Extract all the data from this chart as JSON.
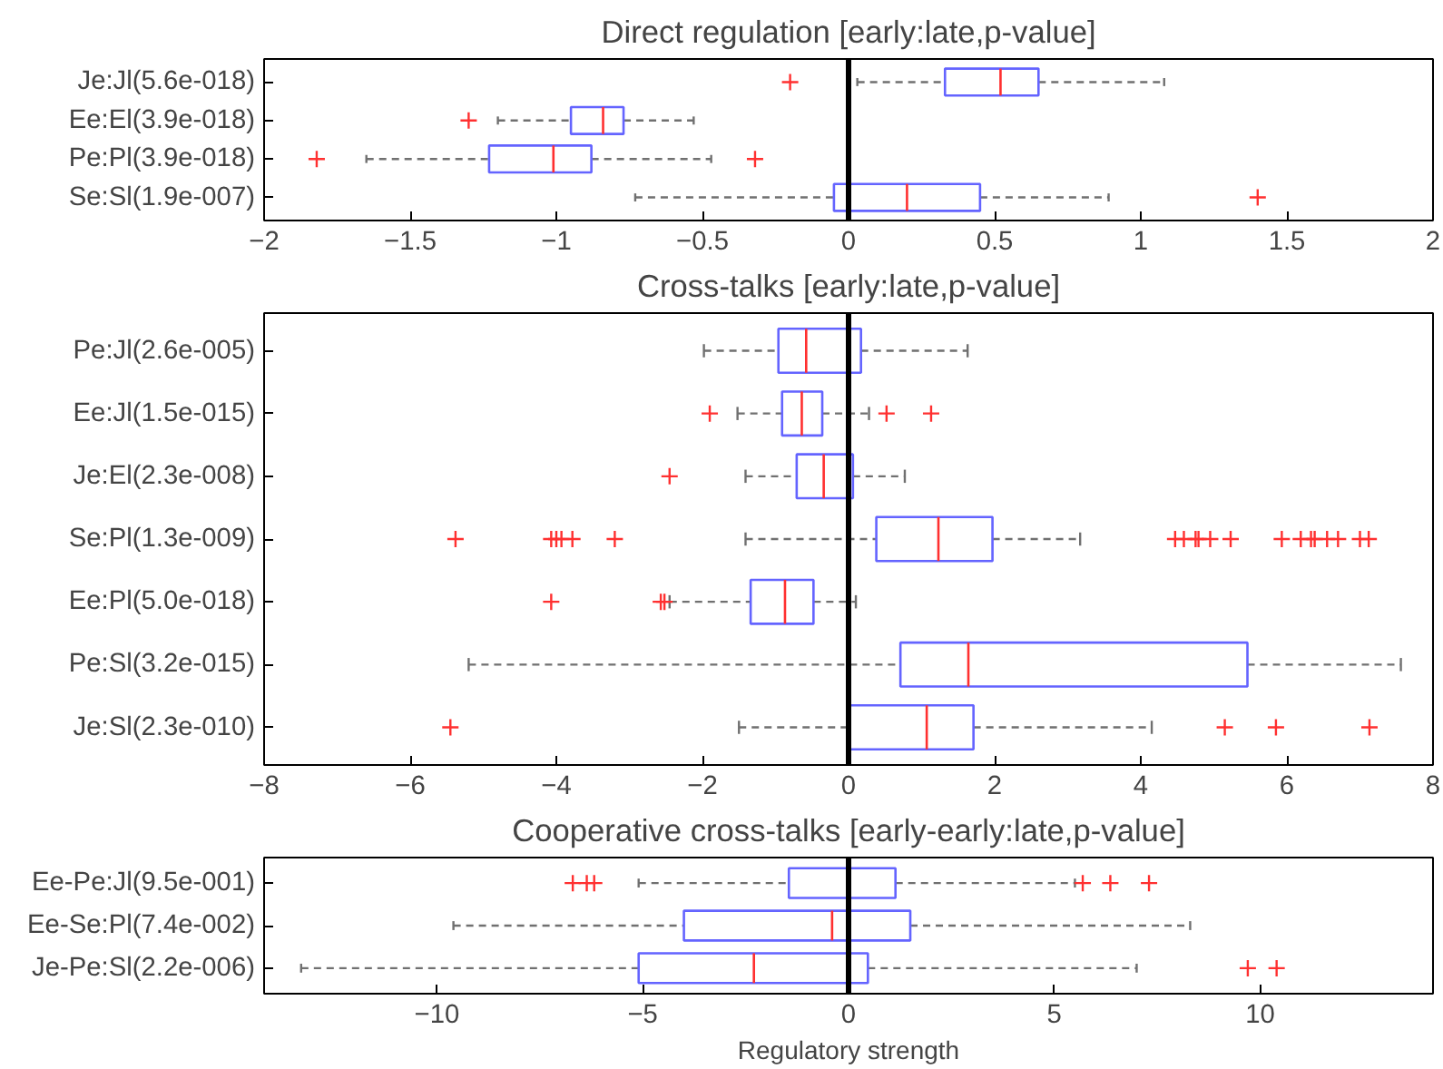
{
  "chart_data": [
    {
      "type": "box",
      "title": "Direct regulation [early:late,p-value]",
      "orientation": "horizontal",
      "categories": [
        "Je:Jl(5.6e-018)",
        "Ee:El(3.9e-018)",
        "Pe:Pl(3.9e-018)",
        "Se:Sl(1.9e-007)"
      ],
      "series": [
        {
          "color": "#6464ff",
          "boxes": [
            {
              "low": 0.03,
              "q1": 0.33,
              "median": 0.52,
              "q3": 0.65,
              "high": 1.08,
              "outliers": [
                -0.2
              ]
            },
            {
              "low": -1.2,
              "q1": -0.95,
              "median": -0.84,
              "q3": -0.77,
              "high": -0.53,
              "outliers": [
                -1.3
              ]
            },
            {
              "low": -1.65,
              "q1": -1.23,
              "median": -1.01,
              "q3": -0.88,
              "high": -0.47,
              "outliers": [
                -1.82,
                -0.32
              ]
            },
            {
              "low": -0.73,
              "q1": -0.05,
              "median": 0.2,
              "q3": 0.45,
              "high": 0.89,
              "outliers": [
                1.4
              ]
            }
          ]
        }
      ],
      "xlim": [
        -2,
        2
      ],
      "xticks": [
        -2,
        -1.5,
        -1,
        -0.5,
        0,
        0.5,
        1,
        1.5,
        2
      ],
      "ref_lines": [
        {
          "axis": "x",
          "value": 0,
          "color": "#000000"
        }
      ],
      "grid": false
    },
    {
      "type": "box",
      "title": "Cross-talks [early:late,p-value]",
      "orientation": "horizontal",
      "categories": [
        "Pe:Jl(2.6e-005)",
        "Ee:Jl(1.5e-015)",
        "Je:El(2.3e-008)",
        "Se:Pl(1.3e-009)",
        "Ee:Pl(5.0e-018)",
        "Pe:Sl(3.2e-015)",
        "Je:Sl(2.3e-010)"
      ],
      "series": [
        {
          "color": "#6464ff",
          "boxes": [
            {
              "low": -1.98,
              "q1": -0.96,
              "median": -0.58,
              "q3": 0.17,
              "high": 1.63
            },
            {
              "low": -1.52,
              "q1": -0.91,
              "median": -0.64,
              "q3": -0.36,
              "high": 0.28,
              "outliers": [
                -1.9,
                0.52,
                1.13
              ]
            },
            {
              "low": -1.41,
              "q1": -0.71,
              "median": -0.34,
              "q3": 0.06,
              "high": 0.77,
              "outliers": [
                -2.45
              ]
            },
            {
              "low": -1.41,
              "q1": 0.38,
              "median": 1.23,
              "q3": 1.97,
              "high": 3.17,
              "outliers": [
                -5.38,
                -4.07,
                -4.0,
                -3.93,
                -3.78,
                -3.2,
                4.47,
                4.59,
                4.75,
                4.79,
                4.95,
                5.23,
                5.93,
                6.19,
                6.33,
                6.38,
                6.55,
                6.7,
                7.0,
                7.12
              ]
            },
            {
              "low": -2.45,
              "q1": -1.34,
              "median": -0.87,
              "q3": -0.48,
              "high": 0.1,
              "outliers": [
                -4.07,
                -2.57,
                -2.52
              ]
            },
            {
              "low": -5.2,
              "q1": 0.71,
              "median": 1.64,
              "q3": 5.46,
              "high": 7.56
            },
            {
              "low": -1.5,
              "q1": -0.02,
              "median": 1.07,
              "q3": 1.71,
              "high": 4.15,
              "outliers": [
                -5.45,
                5.15,
                5.85,
                7.13
              ]
            }
          ]
        }
      ],
      "xlim": [
        -8,
        8
      ],
      "xticks": [
        -8,
        -6,
        -4,
        -2,
        0,
        2,
        4,
        6,
        8
      ],
      "ref_lines": [
        {
          "axis": "x",
          "value": 0,
          "color": "#000000"
        }
      ],
      "grid": false
    },
    {
      "type": "box",
      "title": "Cooperative cross-talks [early-early:late,p-value]",
      "xlabel": "Regulatory strength",
      "orientation": "horizontal",
      "categories": [
        "Ee-Pe:Jl(9.5e-001)",
        "Ee-Se:Pl(7.4e-002)",
        "Je-Pe:Sl(2.2e-006)"
      ],
      "series": [
        {
          "color": "#6464ff",
          "boxes": [
            {
              "low": -5.1,
              "q1": -1.45,
              "median": 0.0,
              "q3": 1.14,
              "high": 5.5,
              "outliers": [
                -6.7,
                -6.36,
                -6.18,
                5.69,
                6.36,
                7.3
              ]
            },
            {
              "low": -9.6,
              "q1": -4.0,
              "median": -0.4,
              "q3": 1.5,
              "high": 8.3
            },
            {
              "low": -13.3,
              "q1": -5.1,
              "median": -2.3,
              "q3": 0.47,
              "high": 7.0,
              "outliers": [
                9.7,
                10.4
              ]
            }
          ]
        }
      ],
      "xlim": [
        -14.2,
        14.2
      ],
      "xticks": [
        -10,
        -5,
        0,
        5,
        10
      ],
      "ref_lines": [
        {
          "axis": "x",
          "value": 0,
          "color": "#000000"
        }
      ],
      "grid": false
    }
  ]
}
